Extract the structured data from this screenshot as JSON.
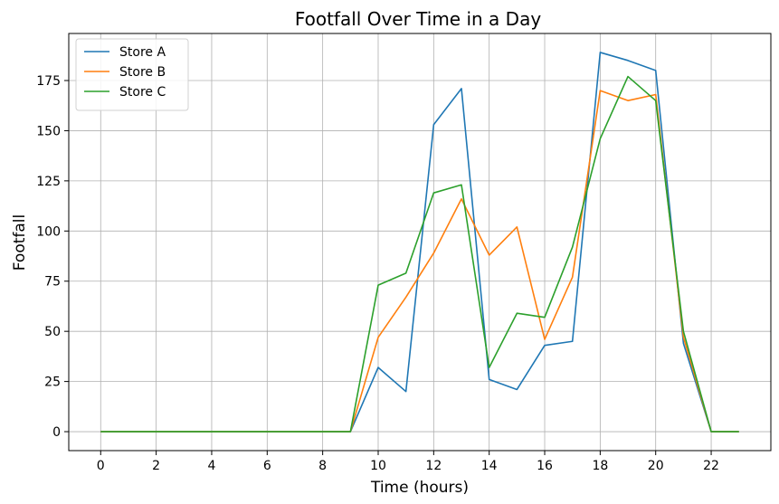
{
  "chart_data": {
    "type": "line",
    "title": "Footfall Over Time in a Day",
    "xlabel": "Time (hours)",
    "ylabel": "Footfall",
    "xlim": [
      -1.15,
      24.15
    ],
    "ylim": [
      -9.45,
      198.45
    ],
    "xticks": [
      0,
      2,
      4,
      6,
      8,
      10,
      12,
      14,
      16,
      18,
      20,
      22
    ],
    "yticks": [
      0,
      25,
      50,
      75,
      100,
      125,
      150,
      175
    ],
    "grid": true,
    "legend_position": "top-left",
    "x": [
      0,
      1,
      2,
      3,
      4,
      5,
      6,
      7,
      8,
      9,
      10,
      11,
      12,
      13,
      14,
      15,
      16,
      17,
      18,
      19,
      20,
      21,
      22,
      23
    ],
    "series": [
      {
        "name": "Store A",
        "color": "#1f77b4",
        "values": [
          0,
          0,
          0,
          0,
          0,
          0,
          0,
          0,
          0,
          0,
          32,
          20,
          153,
          171,
          26,
          21,
          43,
          45,
          189,
          185,
          180,
          44,
          0,
          0
        ]
      },
      {
        "name": "Store B",
        "color": "#ff7f0e",
        "values": [
          0,
          0,
          0,
          0,
          0,
          0,
          0,
          0,
          0,
          0,
          47,
          67,
          89,
          116,
          88,
          102,
          46,
          77,
          170,
          165,
          168,
          47,
          0,
          0
        ]
      },
      {
        "name": "Store C",
        "color": "#2ca02c",
        "values": [
          0,
          0,
          0,
          0,
          0,
          0,
          0,
          0,
          0,
          0,
          73,
          79,
          119,
          123,
          32,
          59,
          57,
          92,
          146,
          177,
          165,
          50,
          0,
          0
        ]
      }
    ]
  }
}
